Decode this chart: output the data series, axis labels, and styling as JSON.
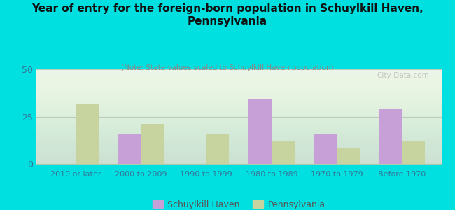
{
  "title": "Year of entry for the foreign-born population in Schuylkill Haven,\nPennsylvania",
  "subtitle": "(Note: State values scaled to Schuylkill Haven population)",
  "categories": [
    "2010 or later",
    "2000 to 2009",
    "1990 to 1999",
    "1980 to 1989",
    "1970 to 1979",
    "Before 1970"
  ],
  "schuylkill_values": [
    0,
    16,
    0,
    34,
    16,
    29
  ],
  "pennsylvania_values": [
    32,
    21,
    16,
    12,
    8,
    12
  ],
  "schuylkill_color": "#c8a0d8",
  "pennsylvania_color": "#c8d4a0",
  "background_color": "#00e0e0",
  "plot_bg_color": "#eaf5ea",
  "ylim": [
    0,
    50
  ],
  "yticks": [
    0,
    25,
    50
  ],
  "bar_width": 0.35,
  "legend_schuylkill": "Schuylkill Haven",
  "legend_pennsylvania": "Pennsylvania",
  "watermark": "City-Data.com",
  "title_fontsize": 11,
  "subtitle_fontsize": 7.5,
  "tick_fontsize": 8,
  "legend_fontsize": 9
}
